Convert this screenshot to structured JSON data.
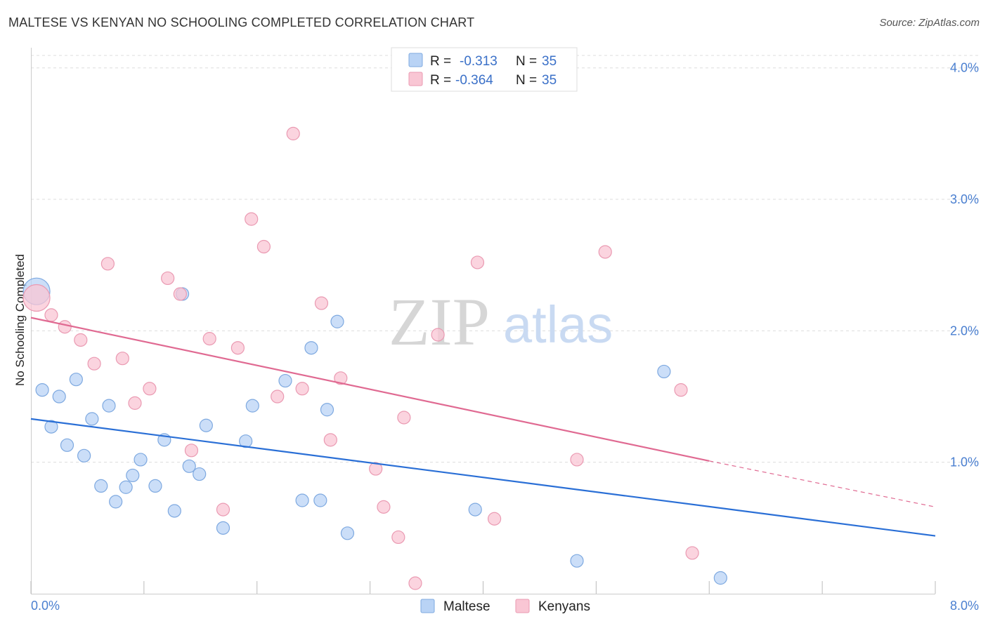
{
  "header": {
    "title": "MALTESE VS KENYAN NO SCHOOLING COMPLETED CORRELATION CHART",
    "source": "Source: ZipAtlas.com"
  },
  "colors": {
    "maltese_fill": "#b9d3f5",
    "maltese_stroke": "#7ea9e0",
    "maltese_line": "#2a6fd6",
    "kenyans_fill": "#f9c6d4",
    "kenyans_stroke": "#ea9ab2",
    "kenyans_line": "#e06a92",
    "tick_text": "#4a7fd0",
    "grid": "#dddddd"
  },
  "watermark": {
    "zip": "ZIP",
    "atlas": "atlas"
  },
  "legend_top": {
    "r_label": "R =",
    "n_label": "N =",
    "rows": [
      {
        "series": "Maltese",
        "r": "-0.313",
        "n": "35"
      },
      {
        "series": "Kenyans",
        "r": "-0.364",
        "n": "35"
      }
    ]
  },
  "chart_data": {
    "type": "scatter",
    "title": "MALTESE VS KENYAN NO SCHOOLING COMPLETED CORRELATION CHART",
    "xlabel": "",
    "ylabel": "No Schooling Completed",
    "xlim": [
      0,
      8
    ],
    "ylim": [
      0,
      4.1
    ],
    "x_tick_labels": [
      "0.0%",
      "8.0%"
    ],
    "y_ticks": [
      1,
      2,
      3,
      4
    ],
    "y_tick_labels": [
      "1.0%",
      "2.0%",
      "3.0%",
      "4.0%"
    ],
    "grid": "horizontal dashed",
    "legend": [
      "Maltese",
      "Kenyans"
    ],
    "legend_position": "bottom-center",
    "series": [
      {
        "name": "Maltese",
        "trend": {
          "x": [
            0,
            8
          ],
          "y": [
            1.33,
            0.44
          ]
        },
        "points": [
          {
            "x": 0.05,
            "y": 2.3,
            "big": true
          },
          {
            "x": 0.1,
            "y": 1.55
          },
          {
            "x": 0.18,
            "y": 1.27
          },
          {
            "x": 0.25,
            "y": 1.5
          },
          {
            "x": 0.32,
            "y": 1.13
          },
          {
            "x": 0.4,
            "y": 1.63
          },
          {
            "x": 0.47,
            "y": 1.05
          },
          {
            "x": 0.54,
            "y": 1.33
          },
          {
            "x": 0.62,
            "y": 0.82
          },
          {
            "x": 0.69,
            "y": 1.43
          },
          {
            "x": 0.75,
            "y": 0.7
          },
          {
            "x": 0.84,
            "y": 0.81
          },
          {
            "x": 0.9,
            "y": 0.9
          },
          {
            "x": 0.97,
            "y": 1.02
          },
          {
            "x": 1.1,
            "y": 0.82
          },
          {
            "x": 1.18,
            "y": 1.17
          },
          {
            "x": 1.27,
            "y": 0.63
          },
          {
            "x": 1.34,
            "y": 2.28
          },
          {
            "x": 1.4,
            "y": 0.97
          },
          {
            "x": 1.49,
            "y": 0.91
          },
          {
            "x": 1.55,
            "y": 1.28
          },
          {
            "x": 1.7,
            "y": 0.5
          },
          {
            "x": 1.9,
            "y": 1.16
          },
          {
            "x": 1.96,
            "y": 1.43
          },
          {
            "x": 2.25,
            "y": 1.62
          },
          {
            "x": 2.4,
            "y": 0.71
          },
          {
            "x": 2.48,
            "y": 1.87
          },
          {
            "x": 2.56,
            "y": 0.71
          },
          {
            "x": 2.62,
            "y": 1.4
          },
          {
            "x": 2.71,
            "y": 2.07
          },
          {
            "x": 2.8,
            "y": 0.46
          },
          {
            "x": 3.93,
            "y": 0.64
          },
          {
            "x": 4.83,
            "y": 0.25
          },
          {
            "x": 5.6,
            "y": 1.69
          },
          {
            "x": 6.1,
            "y": 0.12
          }
        ]
      },
      {
        "name": "Kenyans",
        "trend": {
          "x": [
            0,
            6.0
          ],
          "y": [
            2.1,
            1.01
          ]
        },
        "trend_dashed": {
          "x": [
            6.0,
            8.0
          ],
          "y": [
            1.01,
            0.66
          ]
        },
        "points": [
          {
            "x": 0.05,
            "y": 2.25,
            "big": true
          },
          {
            "x": 0.18,
            "y": 2.12
          },
          {
            "x": 0.3,
            "y": 2.03
          },
          {
            "x": 0.44,
            "y": 1.93
          },
          {
            "x": 0.56,
            "y": 1.75
          },
          {
            "x": 0.68,
            "y": 2.51
          },
          {
            "x": 0.81,
            "y": 1.79
          },
          {
            "x": 0.92,
            "y": 1.45
          },
          {
            "x": 1.05,
            "y": 1.56
          },
          {
            "x": 1.21,
            "y": 2.4
          },
          {
            "x": 1.32,
            "y": 2.28
          },
          {
            "x": 1.42,
            "y": 1.09
          },
          {
            "x": 1.58,
            "y": 1.94
          },
          {
            "x": 1.7,
            "y": 0.64
          },
          {
            "x": 1.83,
            "y": 1.87
          },
          {
            "x": 1.95,
            "y": 2.85
          },
          {
            "x": 2.06,
            "y": 2.64
          },
          {
            "x": 2.18,
            "y": 1.5
          },
          {
            "x": 2.32,
            "y": 3.5
          },
          {
            "x": 2.4,
            "y": 1.56
          },
          {
            "x": 2.57,
            "y": 2.21
          },
          {
            "x": 2.65,
            "y": 1.17
          },
          {
            "x": 2.74,
            "y": 1.64
          },
          {
            "x": 3.05,
            "y": 0.95
          },
          {
            "x": 3.12,
            "y": 0.66
          },
          {
            "x": 3.25,
            "y": 0.43
          },
          {
            "x": 3.3,
            "y": 1.34
          },
          {
            "x": 3.4,
            "y": 0.08
          },
          {
            "x": 3.6,
            "y": 1.97
          },
          {
            "x": 3.95,
            "y": 2.52
          },
          {
            "x": 4.1,
            "y": 0.57
          },
          {
            "x": 4.83,
            "y": 1.02
          },
          {
            "x": 5.08,
            "y": 2.6
          },
          {
            "x": 5.75,
            "y": 1.55
          },
          {
            "x": 5.85,
            "y": 0.31
          }
        ]
      }
    ]
  }
}
